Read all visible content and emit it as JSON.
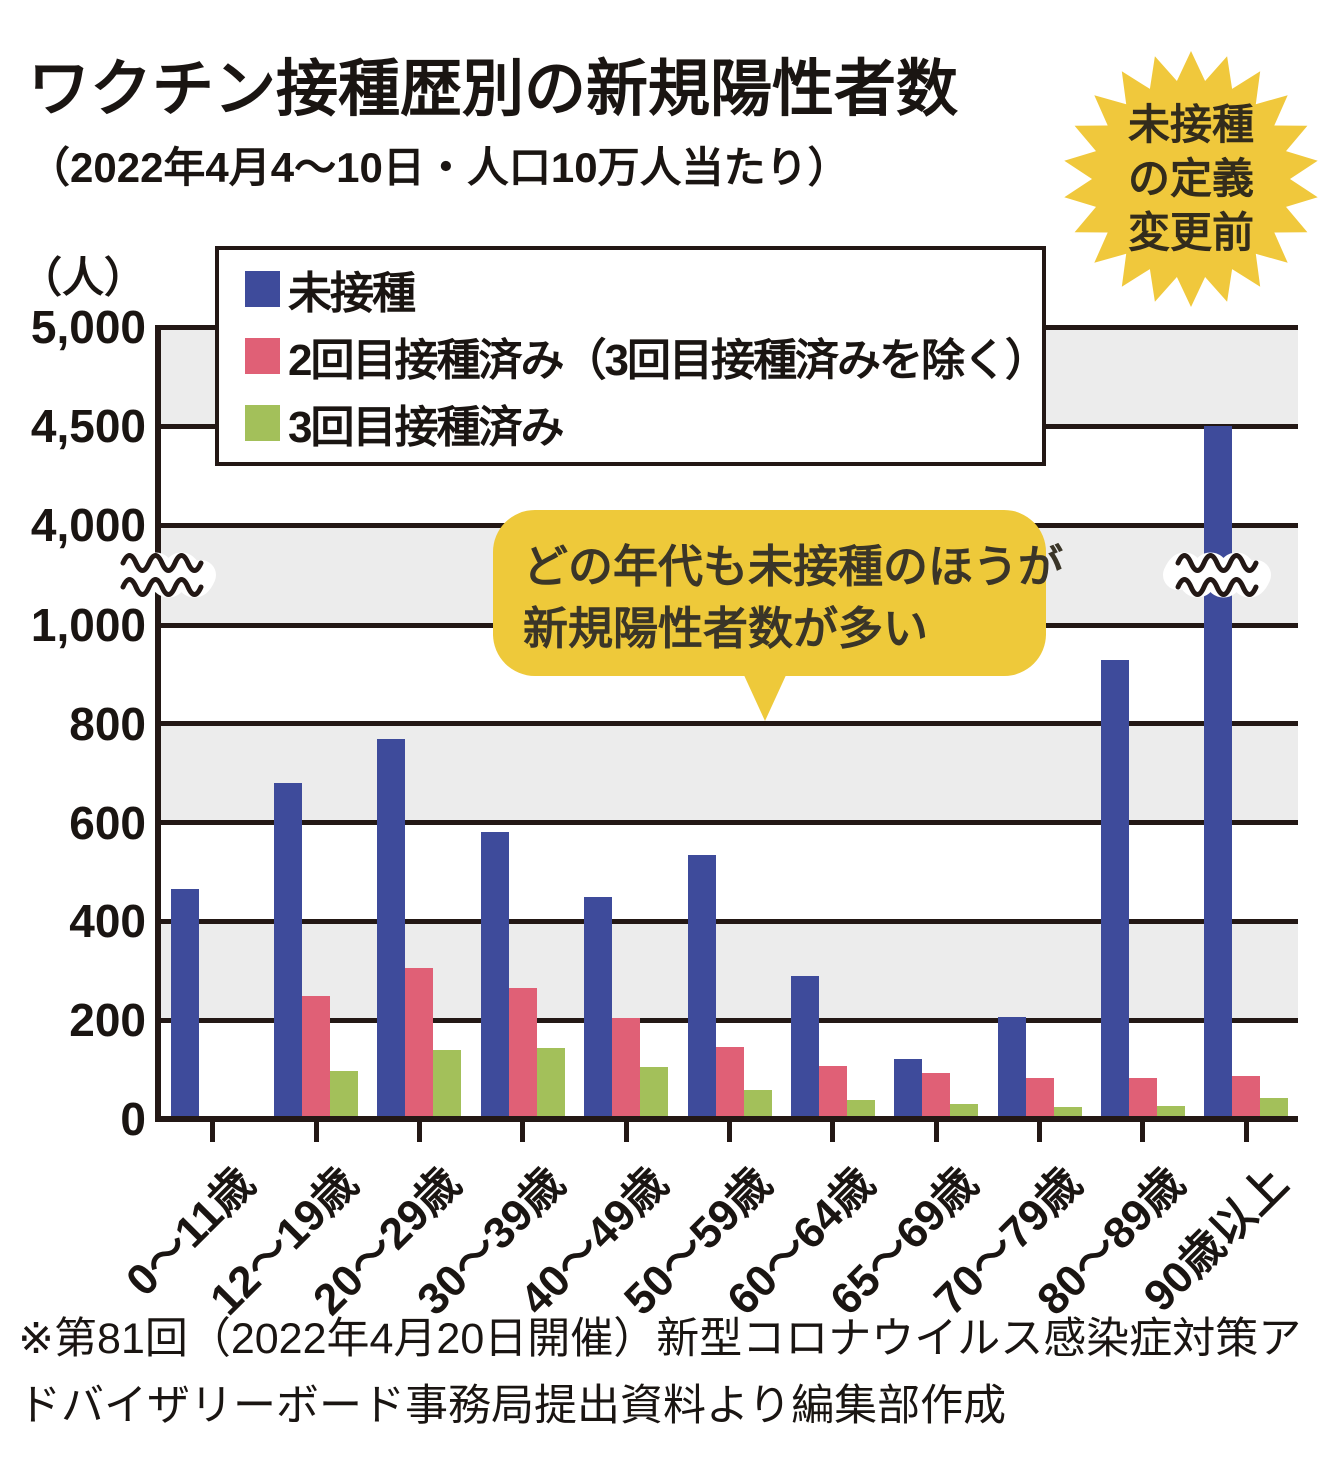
{
  "header": {
    "title": "ワクチン接種歴別の新規陽性者数",
    "subtitle": "（2022年4月4～10日・人口10万人当たり）"
  },
  "badge": {
    "lines": [
      "未接種",
      "の定義",
      "変更前"
    ],
    "color": "#F0C83C",
    "text_color": "#332c1c"
  },
  "legend": {
    "items": [
      {
        "label": "未接種",
        "color": "#3E4B9B"
      },
      {
        "label": "2回目接種済み（3回目接種済みを除く）",
        "color": "#E06076"
      },
      {
        "label": "3回目接種済み",
        "color": "#A3C05A"
      }
    ]
  },
  "callout": {
    "lines": [
      "どの年代も未接種のほうが",
      "新規陽性者数が多い"
    ],
    "color": "#EEC93A"
  },
  "footnote": "※第81回（2022年4月20日開催）新型コロナウイルス感染症対策アドバイザリーボード事務局提出資料より編集部作成",
  "chart_data": {
    "type": "bar",
    "title": "ワクチン接種歴別の新規陽性者数（2022年4月4～10日・人口10万人当たり）",
    "xlabel": "",
    "ylabel": "（人）",
    "categories": [
      "0～11歳",
      "12～19歳",
      "20～29歳",
      "30～39歳",
      "40～49歳",
      "50～59歳",
      "60～64歳",
      "65～69歳",
      "70～79歳",
      "80～89歳",
      "90歳以上"
    ],
    "series": [
      {
        "name": "未接種",
        "color": "#3E4B9B",
        "values": [
          465,
          680,
          770,
          580,
          450,
          535,
          290,
          122,
          207,
          930,
          4500
        ]
      },
      {
        "name": "2回目接種済み（3回目接種済みを除く）",
        "color": "#E06076",
        "values": [
          null,
          248,
          305,
          265,
          205,
          146,
          107,
          93,
          83,
          82,
          88
        ]
      },
      {
        "name": "3回目接種済み",
        "color": "#A3C05A",
        "values": [
          null,
          97,
          140,
          144,
          106,
          58,
          38,
          30,
          25,
          27,
          42
        ]
      }
    ],
    "y_axis": {
      "ticks": [
        {
          "label": "5,000",
          "value": 5000
        },
        {
          "label": "4,500",
          "value": 4500
        },
        {
          "label": "4,000",
          "value": 4000
        },
        {
          "label": "1,000",
          "value": 1000
        },
        {
          "label": "800",
          "value": 800
        },
        {
          "label": "600",
          "value": 600
        },
        {
          "label": "400",
          "value": 400
        },
        {
          "label": "200",
          "value": 200
        },
        {
          "label": "0",
          "value": 0
        }
      ],
      "break_between": [
        1000,
        4000
      ]
    },
    "gray_bands": [
      [
        4500,
        5000
      ],
      [
        1000,
        4000
      ],
      [
        600,
        800
      ],
      [
        200,
        400
      ]
    ],
    "grid": true,
    "legend_position": "top-left",
    "band_color": "#ECECEC",
    "line_color": "#231815"
  }
}
